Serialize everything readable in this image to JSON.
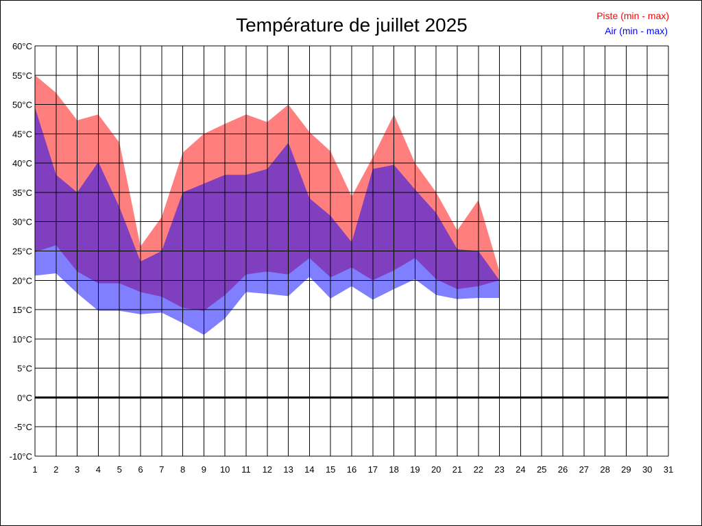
{
  "chart_data": {
    "type": "area",
    "title": "Température de juillet 2025",
    "xlabel": "",
    "ylabel": "",
    "x": [
      1,
      2,
      3,
      4,
      5,
      6,
      7,
      8,
      9,
      10,
      11,
      12,
      13,
      14,
      15,
      16,
      17,
      18,
      19,
      20,
      21,
      22,
      23,
      24,
      25,
      26,
      27,
      28,
      29,
      30,
      31
    ],
    "xlim": [
      1,
      31
    ],
    "ylim": [
      -10,
      60
    ],
    "y_ticks": [
      -10,
      -5,
      0,
      5,
      10,
      15,
      20,
      25,
      30,
      35,
      40,
      45,
      50,
      55,
      60
    ],
    "y_tick_suffix": "°C",
    "grid": true,
    "zero_line": true,
    "legend_position": "top-right",
    "series": [
      {
        "name": "Piste (min - max)",
        "color": "#ff0000",
        "fill": "rgba(255,0,0,0.5)",
        "min": [
          24.8,
          26,
          21.5,
          19.5,
          19.5,
          18,
          17.2,
          15.3,
          14.8,
          17.5,
          21,
          21.5,
          21,
          23.8,
          20.5,
          22.2,
          20,
          21.7,
          23.8,
          20.2,
          18.5,
          19,
          20
        ],
        "max": [
          55,
          52,
          47.3,
          48.3,
          43.5,
          25.8,
          30.8,
          41.8,
          45,
          46.7,
          48.3,
          47,
          50,
          45.3,
          42,
          34.3,
          41,
          48.3,
          40,
          35,
          28.5,
          33.7,
          21.5
        ]
      },
      {
        "name": "Air (min - max)",
        "color": "#0000ff",
        "fill": "rgba(0,0,255,0.5)",
        "min": [
          20.8,
          21.2,
          17.8,
          14.8,
          14.8,
          14.2,
          14.5,
          12.7,
          10.7,
          13.5,
          18,
          17.7,
          17.3,
          20.6,
          16.9,
          19,
          16.7,
          18.5,
          20.2,
          17.5,
          16.8,
          17,
          17
        ],
        "max": [
          49.5,
          38,
          35,
          40.2,
          32.5,
          23.2,
          25,
          35,
          36.5,
          38,
          38,
          39,
          43.5,
          34,
          31,
          26.5,
          39,
          39.7,
          35.5,
          31.5,
          25.3,
          25,
          20
        ]
      }
    ]
  }
}
